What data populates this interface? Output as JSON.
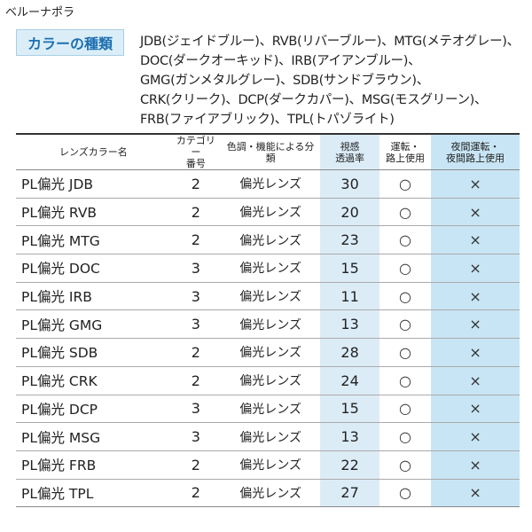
{
  "brand": "ベルーナポラ",
  "badge": "カラーの種類",
  "color_lines": [
    "JDB(ジェイドブルー)、RVB(リバーブルー)、MTG(メテオグレー)、",
    "DOC(ダークオーキッド)、IRB(アイアンブルー)、",
    "GMG(ガンメタルグレー)、SDB(サンドブラウン)、",
    "CRK(クリーク)、DCP(ダークカパー)、MSG(モスグリーン)、",
    "FRB(ファイアブリック)、TPL(トパゾライト)"
  ],
  "table": {
    "headers": {
      "name": "レンズカラー名",
      "category": [
        "カテゴリー",
        "番号"
      ],
      "type": "色調・機能による分類",
      "visible": [
        "視感",
        "透過率"
      ],
      "road": [
        "運転・",
        "路上使用"
      ],
      "night": [
        "夜間運転・",
        "夜間路上使用"
      ]
    },
    "rows": [
      {
        "name": "PL偏光 JDB",
        "category": "2",
        "type": "偏光レンズ",
        "visible": "30",
        "road": "○",
        "night": "×"
      },
      {
        "name": "PL偏光 RVB",
        "category": "2",
        "type": "偏光レンズ",
        "visible": "20",
        "road": "○",
        "night": "×"
      },
      {
        "name": "PL偏光 MTG",
        "category": "2",
        "type": "偏光レンズ",
        "visible": "23",
        "road": "○",
        "night": "×"
      },
      {
        "name": "PL偏光 DOC",
        "category": "3",
        "type": "偏光レンズ",
        "visible": "15",
        "road": "○",
        "night": "×"
      },
      {
        "name": "PL偏光 IRB",
        "category": "3",
        "type": "偏光レンズ",
        "visible": "11",
        "road": "○",
        "night": "×"
      },
      {
        "name": "PL偏光 GMG",
        "category": "3",
        "type": "偏光レンズ",
        "visible": "13",
        "road": "○",
        "night": "×"
      },
      {
        "name": "PL偏光 SDB",
        "category": "2",
        "type": "偏光レンズ",
        "visible": "28",
        "road": "○",
        "night": "×"
      },
      {
        "name": "PL偏光 CRK",
        "category": "2",
        "type": "偏光レンズ",
        "visible": "24",
        "road": "○",
        "night": "×"
      },
      {
        "name": "PL偏光 DCP",
        "category": "3",
        "type": "偏光レンズ",
        "visible": "15",
        "road": "○",
        "night": "×"
      },
      {
        "name": "PL偏光 MSG",
        "category": "3",
        "type": "偏光レンズ",
        "visible": "13",
        "road": "○",
        "night": "×"
      },
      {
        "name": "PL偏光 FRB",
        "category": "2",
        "type": "偏光レンズ",
        "visible": "22",
        "road": "○",
        "night": "×"
      },
      {
        "name": "PL偏光 TPL",
        "category": "2",
        "type": "偏光レンズ",
        "visible": "27",
        "road": "○",
        "night": "×"
      }
    ]
  },
  "colors": {
    "badge_text": "#1d6fb0",
    "badge_bg": "#dbeef8",
    "highlight_visible": "#dcecf7",
    "highlight_night": "#c8e5f5"
  }
}
